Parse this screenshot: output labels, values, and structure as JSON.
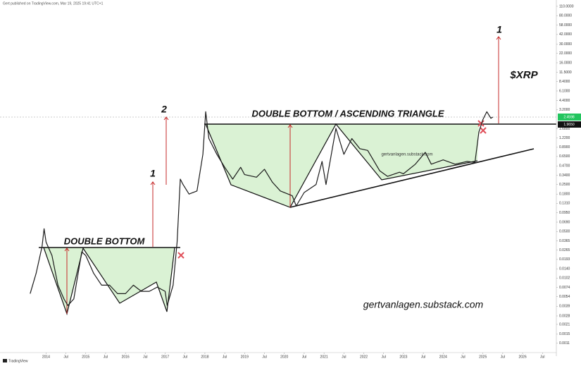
{
  "chart_data": {
    "type": "line",
    "header": "Gert published on TradingView.com, Mar 19, 2025 19:41 UTC+1",
    "source": "TradingView",
    "log_scale": true,
    "grid": false,
    "xlim": [
      2013.55,
      2026.85
    ],
    "xticks": [
      {
        "value": 2014,
        "label": "2014"
      },
      {
        "value": 2014.5,
        "label": "Jul"
      },
      {
        "value": 2015,
        "label": "2015"
      },
      {
        "value": 2015.5,
        "label": "Jul"
      },
      {
        "value": 2016,
        "label": "2016"
      },
      {
        "value": 2016.5,
        "label": "Jul"
      },
      {
        "value": 2017,
        "label": "2017"
      },
      {
        "value": 2017.5,
        "label": "Jul"
      },
      {
        "value": 2018,
        "label": "2018"
      },
      {
        "value": 2018.5,
        "label": "Jul"
      },
      {
        "value": 2019,
        "label": "2019"
      },
      {
        "value": 2019.5,
        "label": "Jul"
      },
      {
        "value": 2020,
        "label": "2020"
      },
      {
        "value": 2020.5,
        "label": "Jul"
      },
      {
        "value": 2021,
        "label": "2021"
      },
      {
        "value": 2021.5,
        "label": "Jul"
      },
      {
        "value": 2022,
        "label": "2022"
      },
      {
        "value": 2022.5,
        "label": "Jul"
      },
      {
        "value": 2023,
        "label": "2023"
      },
      {
        "value": 2023.5,
        "label": "Jul"
      },
      {
        "value": 2024,
        "label": "2024"
      },
      {
        "value": 2024.5,
        "label": "Jul"
      },
      {
        "value": 2025,
        "label": "2025"
      },
      {
        "value": 2025.5,
        "label": "Jul"
      },
      {
        "value": 2026,
        "label": "2026"
      },
      {
        "value": 2026.5,
        "label": "Jul"
      }
    ],
    "ylim": [
      0.0008,
      121
    ],
    "yticks": [
      {
        "value": 110,
        "label": "110.0000"
      },
      {
        "value": 80,
        "label": "80.0000"
      },
      {
        "value": 58,
        "label": "58.0000"
      },
      {
        "value": 42,
        "label": "42.0000"
      },
      {
        "value": 30,
        "label": "30.0000"
      },
      {
        "value": 22,
        "label": "22.0000"
      },
      {
        "value": 16,
        "label": "16.0000"
      },
      {
        "value": 11.5,
        "label": "11.5000"
      },
      {
        "value": 8.4,
        "label": "8.4000"
      },
      {
        "value": 6.1,
        "label": "6.1000"
      },
      {
        "value": 4.4,
        "label": "4.4000"
      },
      {
        "value": 3.2,
        "label": "3.2000"
      },
      {
        "value": 1.68,
        "label": "1.6800"
      },
      {
        "value": 1.22,
        "label": "1.2200"
      },
      {
        "value": 0.89,
        "label": "0.8900"
      },
      {
        "value": 0.65,
        "label": "0.6500"
      },
      {
        "value": 0.47,
        "label": "0.4700"
      },
      {
        "value": 0.34,
        "label": "0.3400"
      },
      {
        "value": 0.25,
        "label": "0.2500"
      },
      {
        "value": 0.18,
        "label": "0.1800"
      },
      {
        "value": 0.131,
        "label": "0.1310"
      },
      {
        "value": 0.095,
        "label": "0.0950"
      },
      {
        "value": 0.069,
        "label": "0.0690"
      },
      {
        "value": 0.05,
        "label": "0.0500"
      },
      {
        "value": 0.0365,
        "label": "0.0365"
      },
      {
        "value": 0.0265,
        "label": "0.0265"
      },
      {
        "value": 0.0193,
        "label": "0.0193"
      },
      {
        "value": 0.014,
        "label": "0.0140"
      },
      {
        "value": 0.0102,
        "label": "0.0102"
      },
      {
        "value": 0.0074,
        "label": "0.0074"
      },
      {
        "value": 0.0054,
        "label": "0.0054"
      },
      {
        "value": 0.0039,
        "label": "0.0039"
      },
      {
        "value": 0.0028,
        "label": "0.0028"
      },
      {
        "value": 0.0021,
        "label": "0.0021"
      },
      {
        "value": 0.0015,
        "label": "0.0015"
      },
      {
        "value": 0.0011,
        "label": "0.0011"
      }
    ],
    "price_labels": [
      "2.4598",
      "1.9650"
    ],
    "x": [
      2013.6,
      2013.75,
      2013.9,
      2013.95,
      2014.0,
      2014.15,
      2014.3,
      2014.45,
      2014.55,
      2014.7,
      2014.9,
      2015.0,
      2015.2,
      2015.4,
      2015.6,
      2015.8,
      2016.0,
      2016.2,
      2016.4,
      2016.6,
      2016.8,
      2017.0,
      2017.05,
      2017.2,
      2017.3,
      2017.38,
      2017.45,
      2017.6,
      2017.8,
      2017.95,
      2018.02,
      2018.1,
      2018.3,
      2018.5,
      2018.7,
      2018.9,
      2019.0,
      2019.3,
      2019.5,
      2019.7,
      2019.9,
      2020.2,
      2020.3,
      2020.5,
      2020.8,
      2020.95,
      2021.05,
      2021.3,
      2021.5,
      2021.7,
      2021.9,
      2022.1,
      2022.4,
      2022.6,
      2022.9,
      2023.0,
      2023.3,
      2023.55,
      2023.7,
      2024.0,
      2024.3,
      2024.6,
      2024.8,
      2024.9,
      2025.0,
      2025.1,
      2025.2,
      2025.25
    ],
    "series": [
      {
        "name": "XRP",
        "color": "#1b1b1b",
        "values": [
          0.006,
          0.012,
          0.03,
          0.055,
          0.035,
          0.022,
          0.008,
          0.005,
          0.004,
          0.005,
          0.025,
          0.022,
          0.012,
          0.008,
          0.008,
          0.006,
          0.006,
          0.008,
          0.0065,
          0.0065,
          0.0075,
          0.0065,
          0.004,
          0.008,
          0.035,
          0.3,
          0.25,
          0.18,
          0.2,
          0.7,
          3.0,
          1.2,
          0.7,
          0.45,
          0.3,
          0.45,
          0.35,
          0.32,
          0.42,
          0.27,
          0.2,
          0.17,
          0.12,
          0.19,
          0.25,
          0.55,
          0.25,
          1.7,
          0.7,
          1.2,
          0.85,
          0.8,
          0.4,
          0.33,
          0.38,
          0.36,
          0.5,
          0.75,
          0.5,
          0.58,
          0.5,
          0.55,
          0.53,
          1.5,
          2.3,
          3.0,
          2.4,
          2.5
        ]
      }
    ],
    "annotations": [
      "DOUBLE BOTTOM",
      "DOUBLE BOTTOM / ASCENDING TRIANGLE",
      "$XRP",
      "1",
      "2",
      "1",
      "gertvanlagen.substack.com",
      "gertvanlagen.substack.com"
    ]
  }
}
